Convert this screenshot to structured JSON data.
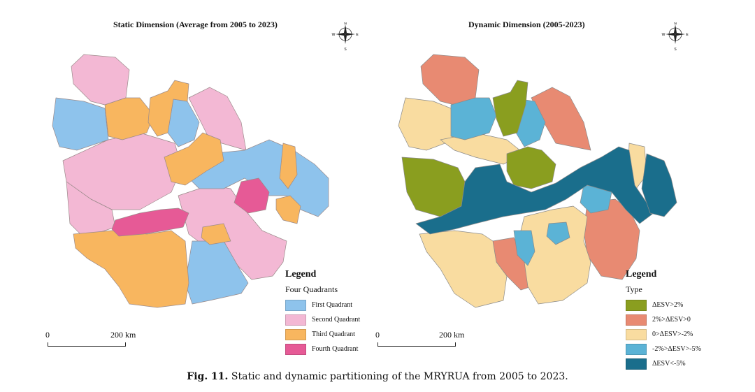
{
  "left_map": {
    "title": "Static Dimension (Average from 2005 to 2023)",
    "legend": {
      "title": "Legend",
      "subtitle": "Four Quadrants",
      "items": [
        {
          "label": "First Quadrant",
          "color": "#8ec3ec"
        },
        {
          "label": "Second Quadrant",
          "color": "#f3b8d4"
        },
        {
          "label": "Third Quadrant",
          "color": "#f8b65f"
        },
        {
          "label": "Fourth Quadrant",
          "color": "#e65a96"
        }
      ]
    },
    "scale": {
      "start": "0",
      "end": "200 km"
    }
  },
  "right_map": {
    "title": "Dynamic Dimension (2005-2023)",
    "legend": {
      "title": "Legend",
      "subtitle": "Type",
      "items": [
        {
          "label": "ΔESV>2%",
          "color": "#8a9e1f"
        },
        {
          "label": "2%>ΔESV>0",
          "color": "#e88a72"
        },
        {
          "label": "0>ΔESV>-2%",
          "color": "#f9dca0"
        },
        {
          "label": "-2%>ΔESV>-5%",
          "color": "#5bb3d6"
        },
        {
          "label": "ΔESV<-5%",
          "color": "#1a6e8c"
        }
      ]
    },
    "scale": {
      "start": "0",
      "end": "200 km"
    }
  },
  "compass_letters": {
    "n": "N",
    "s": "S",
    "e": "E",
    "w": "W"
  },
  "caption": {
    "label": "Fig. 11.",
    "text": "Static and dynamic partitioning of the MRYRUA from 2005 to 2023."
  }
}
